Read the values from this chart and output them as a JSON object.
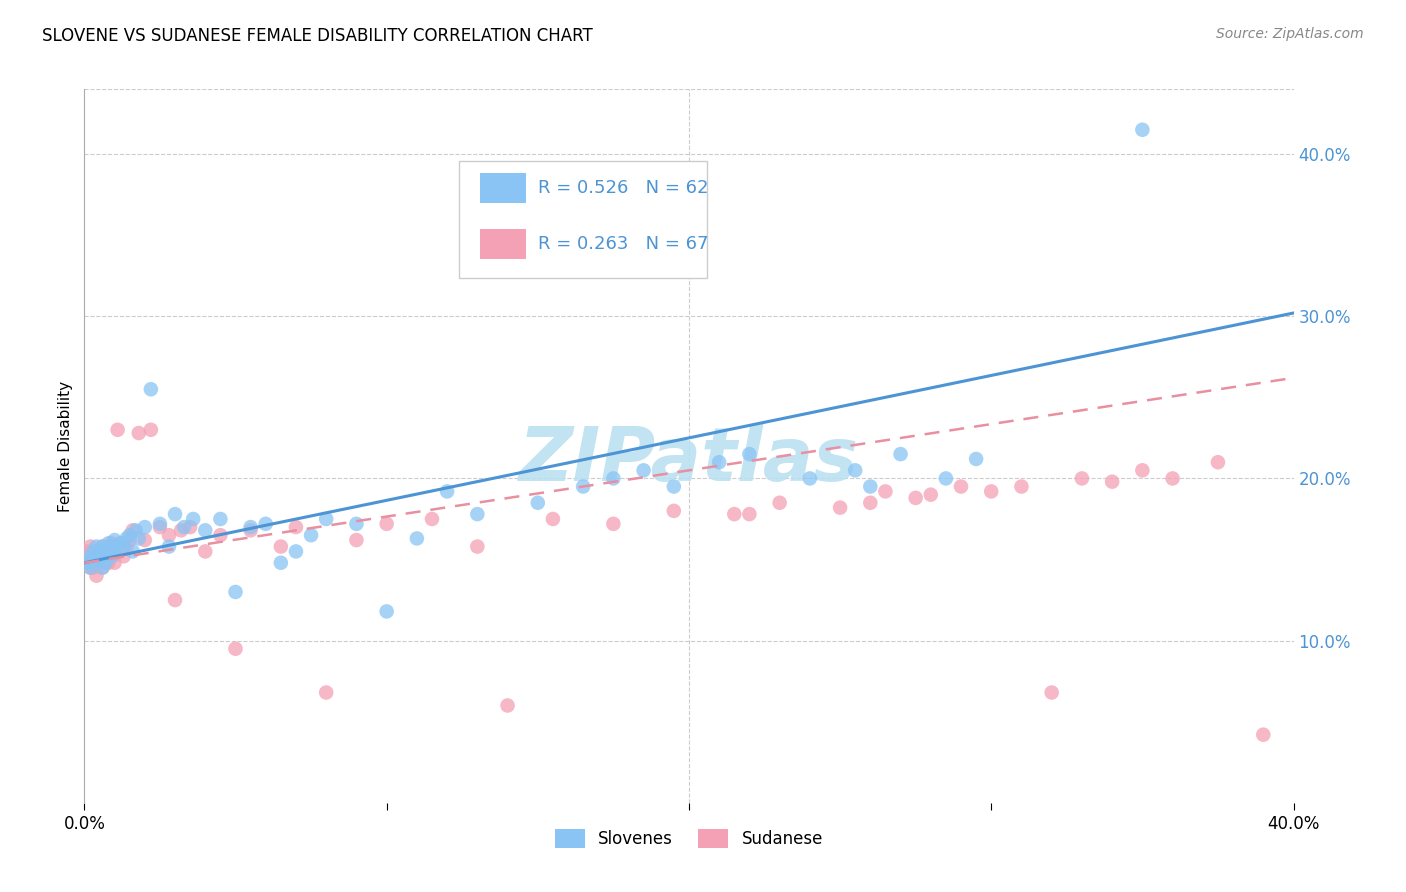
{
  "title": "SLOVENE VS SUDANESE FEMALE DISABILITY CORRELATION CHART",
  "source": "Source: ZipAtlas.com",
  "ylabel": "Female Disability",
  "xlabel_legend_1": "Slovenes",
  "xlabel_legend_2": "Sudanese",
  "legend_r1": "R = 0.526",
  "legend_n1": "N = 62",
  "legend_r2": "R = 0.263",
  "legend_n2": "N = 67",
  "xmin": 0.0,
  "xmax": 0.4,
  "ymin": 0.0,
  "ymax": 0.44,
  "color_slovene": "#89c4f4",
  "color_sudanese": "#f4a0b5",
  "color_trendline_slovene": "#4d94d4",
  "color_trendline_sudanese": "#e88fa0",
  "watermark": "ZIPatlas",
  "watermark_color": "#b8dff0",
  "background_color": "#ffffff",
  "slovene_x": [
    0.001,
    0.002,
    0.002,
    0.003,
    0.003,
    0.004,
    0.004,
    0.005,
    0.005,
    0.006,
    0.006,
    0.007,
    0.007,
    0.008,
    0.008,
    0.009,
    0.009,
    0.01,
    0.01,
    0.011,
    0.012,
    0.013,
    0.014,
    0.015,
    0.016,
    0.017,
    0.018,
    0.02,
    0.022,
    0.025,
    0.028,
    0.03,
    0.033,
    0.036,
    0.04,
    0.045,
    0.05,
    0.055,
    0.06,
    0.065,
    0.07,
    0.075,
    0.08,
    0.09,
    0.1,
    0.11,
    0.12,
    0.13,
    0.15,
    0.165,
    0.175,
    0.185,
    0.195,
    0.21,
    0.22,
    0.24,
    0.255,
    0.26,
    0.27,
    0.285,
    0.295,
    0.35
  ],
  "slovene_y": [
    0.148,
    0.152,
    0.145,
    0.155,
    0.15,
    0.148,
    0.158,
    0.152,
    0.155,
    0.158,
    0.145,
    0.152,
    0.148,
    0.16,
    0.155,
    0.152,
    0.158,
    0.155,
    0.162,
    0.158,
    0.16,
    0.158,
    0.163,
    0.165,
    0.155,
    0.168,
    0.163,
    0.17,
    0.255,
    0.172,
    0.158,
    0.178,
    0.17,
    0.175,
    0.168,
    0.175,
    0.13,
    0.17,
    0.172,
    0.148,
    0.155,
    0.165,
    0.175,
    0.172,
    0.118,
    0.163,
    0.192,
    0.178,
    0.185,
    0.195,
    0.2,
    0.205,
    0.195,
    0.21,
    0.215,
    0.2,
    0.205,
    0.195,
    0.215,
    0.2,
    0.212,
    0.415
  ],
  "sudanese_x": [
    0.001,
    0.001,
    0.002,
    0.002,
    0.003,
    0.003,
    0.004,
    0.004,
    0.005,
    0.005,
    0.006,
    0.006,
    0.007,
    0.007,
    0.008,
    0.008,
    0.009,
    0.009,
    0.01,
    0.01,
    0.011,
    0.012,
    0.013,
    0.014,
    0.015,
    0.016,
    0.018,
    0.02,
    0.022,
    0.025,
    0.028,
    0.03,
    0.032,
    0.035,
    0.04,
    0.045,
    0.05,
    0.055,
    0.065,
    0.07,
    0.08,
    0.09,
    0.1,
    0.115,
    0.13,
    0.14,
    0.155,
    0.175,
    0.195,
    0.215,
    0.22,
    0.23,
    0.25,
    0.26,
    0.265,
    0.275,
    0.28,
    0.29,
    0.3,
    0.31,
    0.32,
    0.33,
    0.34,
    0.35,
    0.36,
    0.375,
    0.39
  ],
  "sudanese_y": [
    0.148,
    0.155,
    0.145,
    0.158,
    0.15,
    0.145,
    0.152,
    0.14,
    0.148,
    0.152,
    0.158,
    0.145,
    0.155,
    0.148,
    0.158,
    0.148,
    0.152,
    0.16,
    0.148,
    0.155,
    0.23,
    0.16,
    0.152,
    0.158,
    0.162,
    0.168,
    0.228,
    0.162,
    0.23,
    0.17,
    0.165,
    0.125,
    0.168,
    0.17,
    0.155,
    0.165,
    0.095,
    0.168,
    0.158,
    0.17,
    0.068,
    0.162,
    0.172,
    0.175,
    0.158,
    0.06,
    0.175,
    0.172,
    0.18,
    0.178,
    0.178,
    0.185,
    0.182,
    0.185,
    0.192,
    0.188,
    0.19,
    0.195,
    0.192,
    0.195,
    0.068,
    0.2,
    0.198,
    0.205,
    0.2,
    0.21,
    0.042
  ],
  "trendline_slovene_x0": 0.0,
  "trendline_slovene_y0": 0.148,
  "trendline_slovene_x1": 0.4,
  "trendline_slovene_y1": 0.302,
  "trendline_sudanese_x0": 0.0,
  "trendline_sudanese_y0": 0.148,
  "trendline_sudanese_x1": 0.4,
  "trendline_sudanese_y1": 0.262
}
